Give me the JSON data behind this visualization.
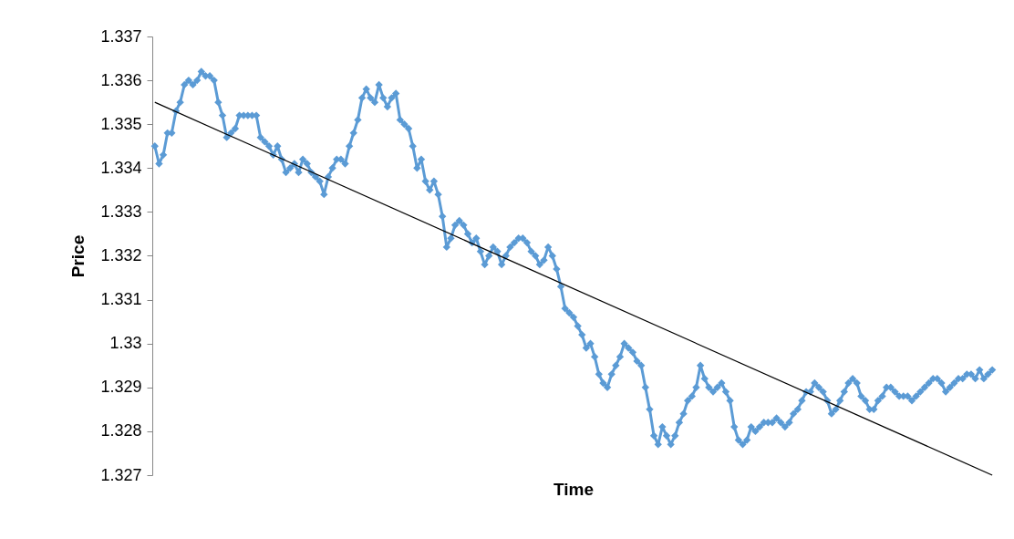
{
  "chart_data": {
    "type": "line",
    "xlabel": "Time",
    "ylabel": "Price",
    "tick_labels": "y",
    "marker": "diamond",
    "line_style": "solid",
    "ylim": [
      1.327,
      1.337
    ],
    "yticks": [
      1.327,
      1.328,
      1.329,
      1.33,
      1.331,
      1.332,
      1.333,
      1.334,
      1.335,
      1.336,
      1.337
    ],
    "categories": [
      null,
      null,
      null,
      null,
      null,
      null,
      null,
      null,
      null,
      null,
      null,
      null,
      null,
      null,
      null,
      null,
      null,
      null,
      null,
      null,
      null,
      null,
      null,
      null,
      null,
      null,
      null,
      null,
      null,
      null,
      null,
      null,
      null,
      null,
      null,
      null,
      null,
      null,
      null,
      null,
      null,
      null,
      null,
      null,
      null,
      null,
      null,
      null,
      null,
      null,
      null,
      null,
      null,
      null,
      null,
      null,
      null,
      null,
      null,
      null,
      null,
      null,
      null,
      null,
      null,
      null,
      null,
      null,
      null,
      null,
      null,
      null,
      null,
      null,
      null,
      null,
      null,
      null,
      null,
      null,
      null,
      null,
      null,
      null,
      null,
      null,
      null,
      null,
      null,
      null,
      null,
      null,
      null,
      null,
      null,
      null,
      null,
      null,
      null,
      null,
      null,
      null,
      null,
      null,
      null,
      null,
      null,
      null,
      null,
      null,
      null,
      null,
      null,
      null,
      null,
      null,
      null,
      null,
      null,
      null,
      null,
      null,
      null,
      null,
      null,
      null,
      null,
      null,
      null,
      null,
      null,
      null,
      null,
      null,
      null,
      null,
      null,
      null,
      null,
      null,
      null,
      null,
      null,
      null,
      null,
      null,
      null,
      null,
      null,
      null,
      null,
      null,
      null,
      null,
      null,
      null,
      null,
      null,
      null,
      null,
      null,
      null,
      null,
      null,
      null,
      null,
      null,
      null,
      null,
      null,
      null,
      null,
      null,
      null,
      null,
      null,
      null,
      null,
      null,
      null,
      null,
      null,
      null,
      null,
      null,
      null,
      null,
      null,
      null,
      null,
      null,
      null,
      null,
      null,
      null,
      null,
      null,
      null,
      null
    ],
    "series": [
      {
        "color": "#5b9bd5",
        "values": [
          1.3345,
          1.3341,
          1.3343,
          1.3348,
          1.3348,
          1.3353,
          1.3355,
          1.3359,
          1.336,
          1.3359,
          1.336,
          1.3362,
          1.3361,
          1.3361,
          1.336,
          1.3355,
          1.3352,
          1.3347,
          1.3348,
          1.3349,
          1.3352,
          1.3352,
          1.3352,
          1.3352,
          1.3352,
          1.3347,
          1.3346,
          1.3345,
          1.3343,
          1.3345,
          1.3342,
          1.3339,
          1.334,
          1.3341,
          1.3339,
          1.3342,
          1.3341,
          1.3339,
          1.3338,
          1.3337,
          1.3334,
          1.3338,
          1.334,
          1.3342,
          1.3342,
          1.3341,
          1.3345,
          1.3348,
          1.3351,
          1.3356,
          1.3358,
          1.3356,
          1.3355,
          1.3359,
          1.3356,
          1.3354,
          1.3356,
          1.3357,
          1.3351,
          1.335,
          1.3349,
          1.3345,
          1.334,
          1.3342,
          1.3337,
          1.3335,
          1.3337,
          1.3334,
          1.3329,
          1.3322,
          1.3324,
          1.3327,
          1.3328,
          1.3327,
          1.3325,
          1.3323,
          1.3324,
          1.3321,
          1.3318,
          1.332,
          1.3322,
          1.3321,
          1.3318,
          1.332,
          1.3322,
          1.3323,
          1.3324,
          1.3324,
          1.3323,
          1.3321,
          1.332,
          1.3318,
          1.3319,
          1.3322,
          1.332,
          1.3317,
          1.3313,
          1.3308,
          1.3307,
          1.3306,
          1.3304,
          1.3302,
          1.3299,
          1.33,
          1.3297,
          1.3293,
          1.3291,
          1.329,
          1.3293,
          1.3295,
          1.3297,
          1.33,
          1.3299,
          1.3298,
          1.3296,
          1.3295,
          1.329,
          1.3285,
          1.3279,
          1.3277,
          1.3281,
          1.3279,
          1.3277,
          1.3279,
          1.3282,
          1.3284,
          1.3287,
          1.3288,
          1.329,
          1.3295,
          1.3292,
          1.329,
          1.3289,
          1.329,
          1.3291,
          1.3289,
          1.3287,
          1.3281,
          1.3278,
          1.3277,
          1.3278,
          1.3281,
          1.328,
          1.3281,
          1.3282,
          1.3282,
          1.3282,
          1.3283,
          1.3282,
          1.3281,
          1.3282,
          1.3284,
          1.3285,
          1.3287,
          1.3289,
          1.3289,
          1.3291,
          1.329,
          1.3289,
          1.3287,
          1.3284,
          1.3285,
          1.3287,
          1.3289,
          1.3291,
          1.3292,
          1.3291,
          1.3288,
          1.3287,
          1.3285,
          1.3285,
          1.3287,
          1.3288,
          1.329,
          1.329,
          1.3289,
          1.3288,
          1.3288,
          1.3288,
          1.3287,
          1.3288,
          1.3289,
          1.329,
          1.3291,
          1.3292,
          1.3292,
          1.3291,
          1.3289,
          1.329,
          1.3291,
          1.3292,
          1.3292,
          1.3293,
          1.3293,
          1.3292,
          1.3294,
          1.3292,
          1.3293,
          1.3294
        ]
      },
      {
        "type": "line",
        "color": "#000000",
        "marker": "none",
        "values": [
          1.3355,
          null,
          null,
          null,
          null,
          null,
          null,
          null,
          null,
          null,
          null,
          null,
          null,
          null,
          null,
          null,
          null,
          null,
          null,
          null,
          null,
          null,
          null,
          null,
          null,
          null,
          null,
          null,
          null,
          null,
          null,
          null,
          null,
          null,
          null,
          null,
          null,
          null,
          null,
          null,
          null,
          null,
          null,
          null,
          null,
          null,
          null,
          null,
          null,
          null,
          null,
          null,
          null,
          null,
          null,
          null,
          null,
          null,
          null,
          null,
          null,
          null,
          null,
          null,
          null,
          null,
          null,
          null,
          null,
          null,
          null,
          null,
          null,
          null,
          null,
          null,
          null,
          null,
          null,
          null,
          null,
          null,
          null,
          null,
          null,
          null,
          null,
          null,
          null,
          null,
          null,
          null,
          null,
          null,
          null,
          null,
          null,
          null,
          null,
          null,
          null,
          null,
          null,
          null,
          null,
          null,
          null,
          null,
          null,
          null,
          null,
          null,
          null,
          null,
          null,
          null,
          null,
          null,
          null,
          null,
          null,
          null,
          null,
          null,
          null,
          null,
          null,
          null,
          null,
          null,
          null,
          null,
          null,
          null,
          null,
          null,
          null,
          null,
          null,
          null,
          null,
          null,
          null,
          null,
          null,
          null,
          null,
          null,
          null,
          null,
          null,
          null,
          null,
          null,
          null,
          null,
          null,
          null,
          null,
          null,
          null,
          null,
          null,
          null,
          null,
          null,
          null,
          null,
          null,
          null,
          null,
          null,
          null,
          null,
          null,
          null,
          null,
          null,
          null,
          null,
          null,
          null,
          null,
          null,
          null,
          null,
          null,
          null,
          null,
          null,
          null,
          null,
          null,
          null,
          null,
          null,
          null,
          null,
          1.327
        ]
      }
    ]
  }
}
